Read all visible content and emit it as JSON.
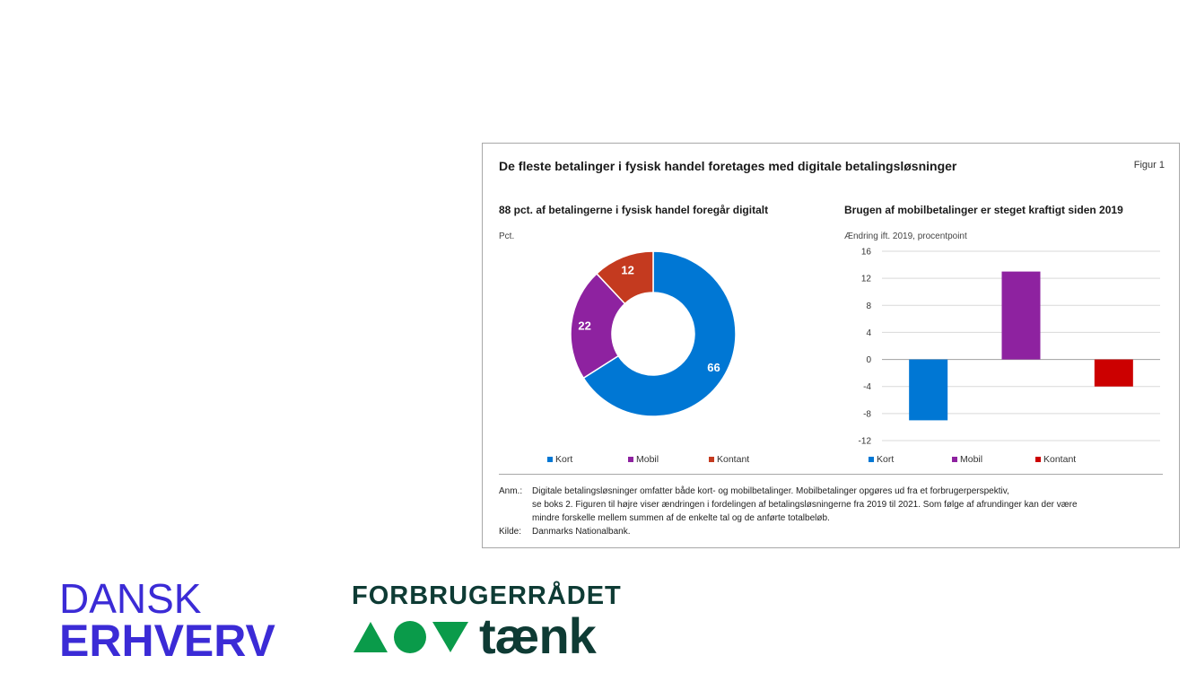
{
  "figure": {
    "title": "De fleste betalinger i fysisk handel foretages med digitale betalingsløsninger",
    "label": "Figur 1"
  },
  "chart_data": [
    {
      "type": "pie",
      "title": "88 pct. af betalingerne i fysisk handel foregår digitalt",
      "unit": "Pct.",
      "categories": [
        "Kort",
        "Mobil",
        "Kontant"
      ],
      "values": [
        66,
        22,
        12
      ],
      "colors": [
        "#0077d4",
        "#8e22a0",
        "#c43a1f"
      ],
      "legend": "bottom"
    },
    {
      "type": "bar",
      "title": "Brugen af mobilbetalinger er steget kraftigt siden 2019",
      "ylabel": "Ændring ift. 2019, procentpoint",
      "categories": [
        "Kort",
        "Mobil",
        "Kontant"
      ],
      "values": [
        -9,
        13,
        -4
      ],
      "colors": [
        "#0077d4",
        "#8e22a0",
        "#cc0000"
      ],
      "ylim": [
        -12,
        16
      ],
      "yticks": [
        16,
        12,
        8,
        4,
        0,
        -4,
        -8,
        -12
      ],
      "grid": true,
      "legend": "bottom"
    }
  ],
  "notes": {
    "anm_label": "Anm.:",
    "anm_text_1": "Digitale betalingsløsninger omfatter både kort- og mobilbetalinger. Mobilbetalinger opgøres ud fra et forbrugerperspektiv,",
    "anm_text_2": "se boks 2. Figuren til højre viser ændringen i fordelingen af betalingsløsningerne fra 2019 til 2021. Som følge af afrundinger kan der være",
    "anm_text_3": "mindre forskelle mellem summen af de enkelte tal og de anførte totalbeløb.",
    "kilde_label": "Kilde:",
    "kilde_text": "Danmarks Nationalbank."
  },
  "logos": {
    "dansk_erhverv_line1": "DANSK",
    "dansk_erhverv_line2": "ERHVERV",
    "forbrugerraadet_line1": "FORBRUGERRÅDET",
    "forbrugerraadet_word": "tænk",
    "dansk_erhverv_color": "#3b2bd6",
    "taenk_dark": "#0e3b34",
    "taenk_green": "#0a9b4a"
  }
}
